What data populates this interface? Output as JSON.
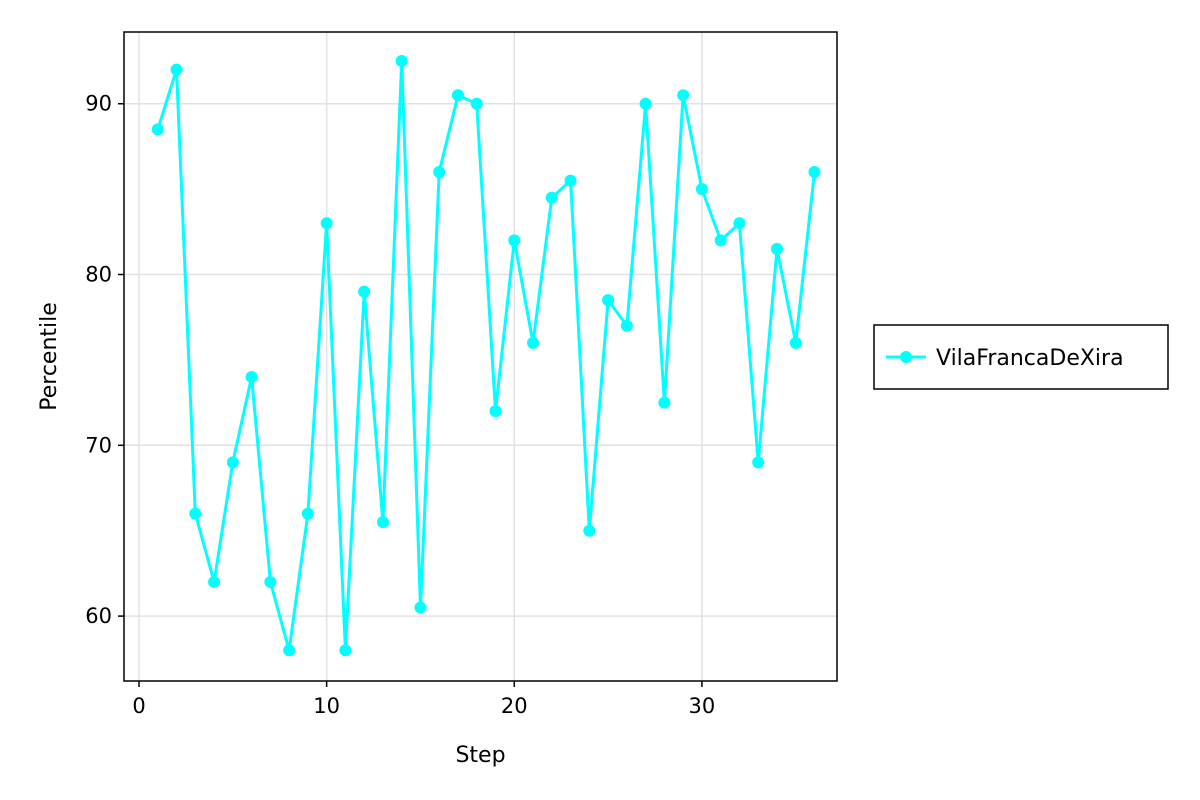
{
  "chart_data": {
    "type": "line",
    "title": "",
    "xlabel": "Step",
    "ylabel": "Percentile",
    "xlim": [
      -0.8,
      37.2
    ],
    "ylim": [
      56.2,
      94.2
    ],
    "xticks": [
      0,
      10,
      20,
      30
    ],
    "yticks": [
      60,
      70,
      80,
      90
    ],
    "grid": true,
    "legend_position": "right",
    "series": [
      {
        "name": "VilaFrancaDeXira",
        "color": "#00ffff",
        "marker": "circle",
        "x": [
          1,
          2,
          3,
          4,
          5,
          6,
          7,
          8,
          9,
          10,
          11,
          12,
          13,
          14,
          15,
          16,
          17,
          18,
          19,
          20,
          21,
          22,
          23,
          24,
          25,
          26,
          27,
          28,
          29,
          30,
          31,
          32,
          33,
          34,
          35,
          36
        ],
        "y": [
          88.5,
          92,
          66,
          62,
          69,
          74,
          62,
          58,
          66,
          83,
          58,
          79,
          65.5,
          92.5,
          60.5,
          86,
          90.5,
          90,
          72,
          82,
          76,
          84.5,
          85.5,
          65,
          78.5,
          77,
          90,
          72.5,
          90.5,
          85,
          82,
          83,
          69,
          81.5,
          76,
          86
        ]
      }
    ]
  }
}
